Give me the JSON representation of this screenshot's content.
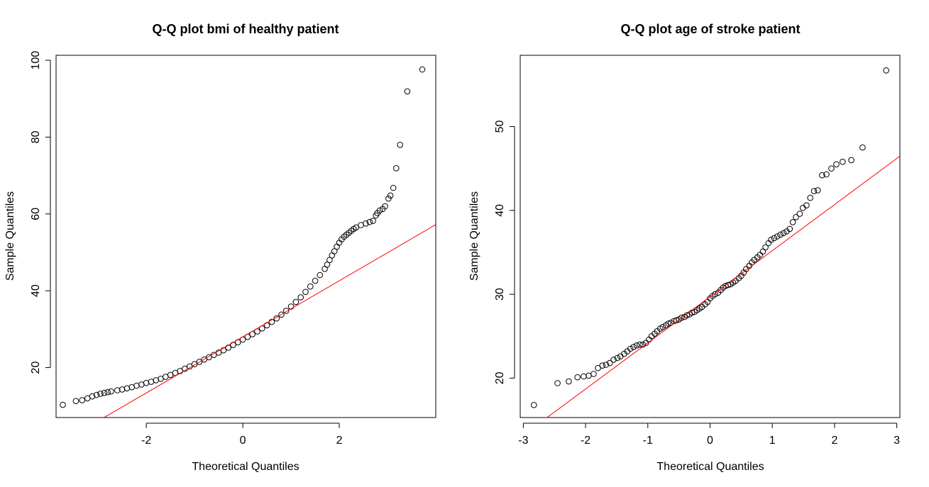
{
  "chart_data": [
    {
      "type": "scatter",
      "title": "Q-Q plot bmi of healthy patient",
      "xlabel": "Theoretical Quantiles",
      "ylabel": "Sample Quantiles",
      "xlim": [
        -3.87,
        4.0
      ],
      "ylim": [
        7.0,
        101.3
      ],
      "xticks": [
        -2,
        0,
        2
      ],
      "yticks": [
        20,
        40,
        60,
        80,
        100
      ],
      "qq_line": {
        "intercept": 28.0,
        "slope": 7.3,
        "color": "#ff0000"
      },
      "series": [
        {
          "points": [
            [
              -3.73,
              10.3
            ],
            [
              -3.46,
              11.3
            ],
            [
              -3.33,
              11.5
            ],
            [
              -3.22,
              12.0
            ],
            [
              -3.12,
              12.5
            ],
            [
              -3.03,
              12.9
            ],
            [
              -2.95,
              13.2
            ],
            [
              -2.87,
              13.4
            ],
            [
              -2.8,
              13.6
            ],
            [
              -2.73,
              13.8
            ],
            [
              -2.6,
              14.1
            ],
            [
              -2.5,
              14.3
            ],
            [
              -2.4,
              14.6
            ],
            [
              -2.3,
              14.9
            ],
            [
              -2.2,
              15.3
            ],
            [
              -2.1,
              15.6
            ],
            [
              -2.0,
              16.0
            ],
            [
              -1.9,
              16.3
            ],
            [
              -1.8,
              16.7
            ],
            [
              -1.7,
              17.1
            ],
            [
              -1.6,
              17.6
            ],
            [
              -1.5,
              18.1
            ],
            [
              -1.4,
              18.6
            ],
            [
              -1.3,
              19.1
            ],
            [
              -1.2,
              19.7
            ],
            [
              -1.1,
              20.3
            ],
            [
              -1.0,
              20.9
            ],
            [
              -0.9,
              21.5
            ],
            [
              -0.8,
              22.1
            ],
            [
              -0.7,
              22.7
            ],
            [
              -0.6,
              23.3
            ],
            [
              -0.5,
              23.9
            ],
            [
              -0.4,
              24.5
            ],
            [
              -0.3,
              25.2
            ],
            [
              -0.2,
              25.9
            ],
            [
              -0.1,
              26.6
            ],
            [
              0.0,
              27.3
            ],
            [
              0.1,
              28.0
            ],
            [
              0.2,
              28.7
            ],
            [
              0.3,
              29.4
            ],
            [
              0.4,
              30.2
            ],
            [
              0.5,
              31.0
            ],
            [
              0.6,
              31.9
            ],
            [
              0.7,
              32.8
            ],
            [
              0.8,
              33.8
            ],
            [
              0.9,
              34.8
            ],
            [
              1.0,
              35.9
            ],
            [
              1.1,
              37.1
            ],
            [
              1.2,
              38.3
            ],
            [
              1.3,
              39.7
            ],
            [
              1.4,
              41.1
            ],
            [
              1.5,
              42.6
            ],
            [
              1.6,
              44.1
            ],
            [
              1.7,
              45.7
            ],
            [
              1.75,
              46.8
            ],
            [
              1.8,
              48.0
            ],
            [
              1.85,
              49.2
            ],
            [
              1.9,
              50.3
            ],
            [
              1.95,
              51.5
            ],
            [
              2.0,
              52.5
            ],
            [
              2.05,
              53.4
            ],
            [
              2.1,
              54.1
            ],
            [
              2.15,
              54.6
            ],
            [
              2.2,
              55.1
            ],
            [
              2.25,
              55.6
            ],
            [
              2.3,
              56.1
            ],
            [
              2.35,
              56.5
            ],
            [
              2.45,
              57.1
            ],
            [
              2.55,
              57.5
            ],
            [
              2.63,
              57.9
            ],
            [
              2.7,
              58.2
            ],
            [
              2.76,
              59.6
            ],
            [
              2.79,
              60.2
            ],
            [
              2.84,
              60.9
            ],
            [
              2.9,
              61.3
            ],
            [
              2.95,
              62.0
            ],
            [
              3.02,
              64.0
            ],
            [
              3.06,
              64.8
            ],
            [
              3.12,
              66.8
            ],
            [
              3.18,
              71.9
            ],
            [
              3.26,
              78.0
            ],
            [
              3.41,
              91.9
            ],
            [
              3.72,
              97.6
            ]
          ]
        }
      ]
    },
    {
      "type": "scatter",
      "title": "Q-Q plot age of stroke patient",
      "xlabel": "Theoretical Quantiles",
      "ylabel": "Sample Quantiles",
      "xlim": [
        -3.05,
        3.05
      ],
      "ylim": [
        15.3,
        58.5
      ],
      "xticks": [
        -3,
        -2,
        -1,
        0,
        1,
        2,
        3
      ],
      "yticks": [
        20,
        30,
        40,
        50
      ],
      "qq_line": {
        "intercept": 29.7,
        "slope": 5.5,
        "color": "#ff0000"
      },
      "series": [
        {
          "points": [
            [
              -2.83,
              16.8
            ],
            [
              -2.45,
              19.4
            ],
            [
              -2.27,
              19.6
            ],
            [
              -2.13,
              20.1
            ],
            [
              -2.03,
              20.2
            ],
            [
              -1.95,
              20.3
            ],
            [
              -1.87,
              20.5
            ],
            [
              -1.8,
              21.2
            ],
            [
              -1.73,
              21.5
            ],
            [
              -1.67,
              21.6
            ],
            [
              -1.61,
              21.8
            ],
            [
              -1.55,
              22.2
            ],
            [
              -1.49,
              22.4
            ],
            [
              -1.44,
              22.6
            ],
            [
              -1.38,
              22.9
            ],
            [
              -1.33,
              23.2
            ],
            [
              -1.28,
              23.5
            ],
            [
              -1.23,
              23.7
            ],
            [
              -1.18,
              23.9
            ],
            [
              -1.13,
              24.0
            ],
            [
              -1.08,
              24.0
            ],
            [
              -1.03,
              24.2
            ],
            [
              -0.98,
              24.6
            ],
            [
              -0.94,
              25.0
            ],
            [
              -0.89,
              25.3
            ],
            [
              -0.85,
              25.6
            ],
            [
              -0.8,
              25.9
            ],
            [
              -0.76,
              26.1
            ],
            [
              -0.71,
              26.3
            ],
            [
              -0.67,
              26.5
            ],
            [
              -0.63,
              26.6
            ],
            [
              -0.58,
              26.8
            ],
            [
              -0.54,
              26.9
            ],
            [
              -0.5,
              27.0
            ],
            [
              -0.46,
              27.2
            ],
            [
              -0.41,
              27.3
            ],
            [
              -0.37,
              27.5
            ],
            [
              -0.33,
              27.6
            ],
            [
              -0.29,
              27.8
            ],
            [
              -0.25,
              27.9
            ],
            [
              -0.21,
              28.1
            ],
            [
              -0.17,
              28.3
            ],
            [
              -0.13,
              28.5
            ],
            [
              -0.08,
              28.8
            ],
            [
              -0.04,
              29.1
            ],
            [
              0.0,
              29.5
            ],
            [
              0.04,
              29.8
            ],
            [
              0.08,
              30.0
            ],
            [
              0.13,
              30.2
            ],
            [
              0.17,
              30.5
            ],
            [
              0.21,
              30.8
            ],
            [
              0.25,
              31.0
            ],
            [
              0.29,
              31.1
            ],
            [
              0.33,
              31.2
            ],
            [
              0.37,
              31.4
            ],
            [
              0.41,
              31.6
            ],
            [
              0.46,
              31.9
            ],
            [
              0.5,
              32.2
            ],
            [
              0.54,
              32.6
            ],
            [
              0.58,
              33.0
            ],
            [
              0.63,
              33.4
            ],
            [
              0.67,
              33.8
            ],
            [
              0.71,
              34.1
            ],
            [
              0.76,
              34.4
            ],
            [
              0.8,
              34.7
            ],
            [
              0.85,
              35.1
            ],
            [
              0.89,
              35.6
            ],
            [
              0.94,
              36.1
            ],
            [
              0.98,
              36.5
            ],
            [
              1.03,
              36.7
            ],
            [
              1.08,
              36.9
            ],
            [
              1.13,
              37.1
            ],
            [
              1.18,
              37.3
            ],
            [
              1.23,
              37.5
            ],
            [
              1.28,
              37.8
            ],
            [
              1.33,
              38.6
            ],
            [
              1.38,
              39.2
            ],
            [
              1.44,
              39.6
            ],
            [
              1.49,
              40.3
            ],
            [
              1.55,
              40.6
            ],
            [
              1.61,
              41.5
            ],
            [
              1.67,
              42.3
            ],
            [
              1.73,
              42.4
            ],
            [
              1.8,
              44.2
            ],
            [
              1.87,
              44.3
            ],
            [
              1.95,
              45.0
            ],
            [
              2.03,
              45.5
            ],
            [
              2.13,
              45.8
            ],
            [
              2.27,
              46.0
            ],
            [
              2.45,
              47.5
            ],
            [
              2.83,
              56.7
            ]
          ]
        }
      ]
    }
  ]
}
